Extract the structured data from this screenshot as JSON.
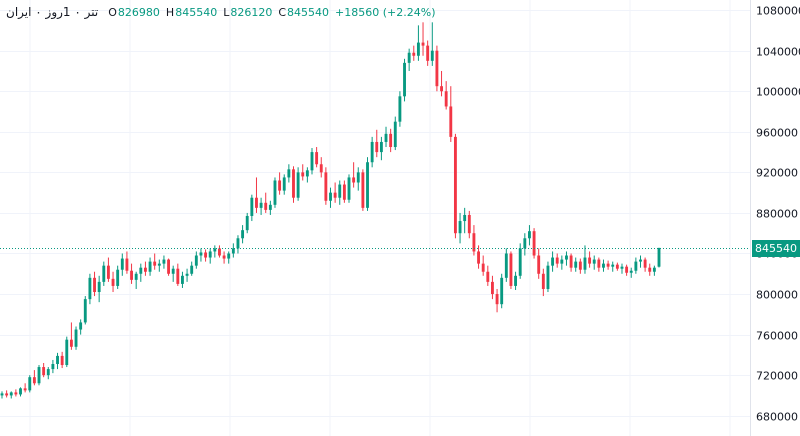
{
  "legend": {
    "symbol": "تتر ۰ 1روز ۰ ایران",
    "open_key": "O",
    "open": "826980",
    "high_key": "H",
    "high": "845540",
    "low_key": "L",
    "low": "826120",
    "close_key": "C",
    "close": "845540",
    "change": "+18560 (+2.24%)"
  },
  "colors": {
    "up": "#089981",
    "down": "#f23645",
    "grid": "#f0f3fa",
    "text": "#131722"
  },
  "chart_data": {
    "type": "candlestick",
    "title": "تتر ۰ 1روز ۰ ایران",
    "ylabel": "",
    "ylim": [
      660000,
      1090000
    ],
    "y_ticks": [
      1080000,
      1040000,
      1000000,
      960000,
      920000,
      880000,
      840000,
      800000,
      760000,
      720000,
      680000
    ],
    "y_tick_labels": [
      "1080000",
      "1040000",
      "1000000",
      "960000",
      "920000",
      "880000",
      "840000",
      "800000",
      "760000",
      "720000",
      "680000"
    ],
    "last_price": 845540,
    "last_price_label": "845540",
    "grid": true,
    "series": [
      {
        "o": 700000,
        "h": 704000,
        "l": 697000,
        "c": 702000
      },
      {
        "o": 702000,
        "h": 705000,
        "l": 698000,
        "c": 700000
      },
      {
        "o": 700000,
        "h": 704000,
        "l": 697000,
        "c": 703000
      },
      {
        "o": 703000,
        "h": 706000,
        "l": 699000,
        "c": 701000
      },
      {
        "o": 701000,
        "h": 708000,
        "l": 699000,
        "c": 707000
      },
      {
        "o": 707000,
        "h": 712000,
        "l": 703000,
        "c": 705000
      },
      {
        "o": 705000,
        "h": 720000,
        "l": 703000,
        "c": 718000
      },
      {
        "o": 718000,
        "h": 725000,
        "l": 710000,
        "c": 712000
      },
      {
        "o": 712000,
        "h": 730000,
        "l": 710000,
        "c": 728000
      },
      {
        "o": 728000,
        "h": 732000,
        "l": 718000,
        "c": 720000
      },
      {
        "o": 720000,
        "h": 728000,
        "l": 716000,
        "c": 726000
      },
      {
        "o": 726000,
        "h": 735000,
        "l": 722000,
        "c": 731000
      },
      {
        "o": 731000,
        "h": 742000,
        "l": 726000,
        "c": 739000
      },
      {
        "o": 739000,
        "h": 743000,
        "l": 727000,
        "c": 730000
      },
      {
        "o": 730000,
        "h": 758000,
        "l": 728000,
        "c": 755000
      },
      {
        "o": 755000,
        "h": 772000,
        "l": 745000,
        "c": 748000
      },
      {
        "o": 748000,
        "h": 768000,
        "l": 745000,
        "c": 765000
      },
      {
        "o": 765000,
        "h": 775000,
        "l": 760000,
        "c": 772000
      },
      {
        "o": 772000,
        "h": 798000,
        "l": 770000,
        "c": 795000
      },
      {
        "o": 795000,
        "h": 820000,
        "l": 790000,
        "c": 816000
      },
      {
        "o": 816000,
        "h": 822000,
        "l": 798000,
        "c": 802000
      },
      {
        "o": 802000,
        "h": 818000,
        "l": 792000,
        "c": 812000
      },
      {
        "o": 812000,
        "h": 832000,
        "l": 808000,
        "c": 828000
      },
      {
        "o": 828000,
        "h": 836000,
        "l": 812000,
        "c": 815000
      },
      {
        "o": 815000,
        "h": 822000,
        "l": 802000,
        "c": 808000
      },
      {
        "o": 808000,
        "h": 828000,
        "l": 805000,
        "c": 824000
      },
      {
        "o": 824000,
        "h": 840000,
        "l": 818000,
        "c": 835000
      },
      {
        "o": 835000,
        "h": 842000,
        "l": 820000,
        "c": 823000
      },
      {
        "o": 823000,
        "h": 830000,
        "l": 810000,
        "c": 814000
      },
      {
        "o": 814000,
        "h": 822000,
        "l": 805000,
        "c": 820000
      },
      {
        "o": 820000,
        "h": 830000,
        "l": 812000,
        "c": 826000
      },
      {
        "o": 826000,
        "h": 832000,
        "l": 818000,
        "c": 822000
      },
      {
        "o": 822000,
        "h": 836000,
        "l": 818000,
        "c": 832000
      },
      {
        "o": 832000,
        "h": 840000,
        "l": 824000,
        "c": 828000
      },
      {
        "o": 828000,
        "h": 834000,
        "l": 822000,
        "c": 830000
      },
      {
        "o": 830000,
        "h": 838000,
        "l": 825000,
        "c": 834000
      },
      {
        "o": 834000,
        "h": 835000,
        "l": 818000,
        "c": 820000
      },
      {
        "o": 820000,
        "h": 828000,
        "l": 812000,
        "c": 825000
      },
      {
        "o": 825000,
        "h": 830000,
        "l": 808000,
        "c": 810000
      },
      {
        "o": 810000,
        "h": 822000,
        "l": 806000,
        "c": 818000
      },
      {
        "o": 818000,
        "h": 825000,
        "l": 812000,
        "c": 820000
      },
      {
        "o": 820000,
        "h": 832000,
        "l": 818000,
        "c": 828000
      },
      {
        "o": 828000,
        "h": 842000,
        "l": 825000,
        "c": 838000
      },
      {
        "o": 838000,
        "h": 845000,
        "l": 832000,
        "c": 841000
      },
      {
        "o": 841000,
        "h": 844000,
        "l": 832000,
        "c": 836000
      },
      {
        "o": 836000,
        "h": 845000,
        "l": 830000,
        "c": 842000
      },
      {
        "o": 842000,
        "h": 848000,
        "l": 836000,
        "c": 845000
      },
      {
        "o": 845000,
        "h": 848000,
        "l": 836000,
        "c": 838000
      },
      {
        "o": 838000,
        "h": 842000,
        "l": 830000,
        "c": 835000
      },
      {
        "o": 835000,
        "h": 842000,
        "l": 830000,
        "c": 840000
      },
      {
        "o": 840000,
        "h": 850000,
        "l": 836000,
        "c": 845000
      },
      {
        "o": 845000,
        "h": 858000,
        "l": 840000,
        "c": 855000
      },
      {
        "o": 855000,
        "h": 868000,
        "l": 850000,
        "c": 863000
      },
      {
        "o": 863000,
        "h": 880000,
        "l": 860000,
        "c": 877000
      },
      {
        "o": 877000,
        "h": 898000,
        "l": 872000,
        "c": 895000
      },
      {
        "o": 895000,
        "h": 915000,
        "l": 880000,
        "c": 885000
      },
      {
        "o": 885000,
        "h": 895000,
        "l": 878000,
        "c": 890000
      },
      {
        "o": 890000,
        "h": 900000,
        "l": 880000,
        "c": 883000
      },
      {
        "o": 883000,
        "h": 892000,
        "l": 878000,
        "c": 888000
      },
      {
        "o": 888000,
        "h": 915000,
        "l": 885000,
        "c": 912000
      },
      {
        "o": 912000,
        "h": 920000,
        "l": 898000,
        "c": 902000
      },
      {
        "o": 902000,
        "h": 918000,
        "l": 898000,
        "c": 915000
      },
      {
        "o": 915000,
        "h": 928000,
        "l": 910000,
        "c": 923000
      },
      {
        "o": 923000,
        "h": 926000,
        "l": 890000,
        "c": 895000
      },
      {
        "o": 895000,
        "h": 925000,
        "l": 892000,
        "c": 920000
      },
      {
        "o": 920000,
        "h": 928000,
        "l": 912000,
        "c": 916000
      },
      {
        "o": 916000,
        "h": 925000,
        "l": 910000,
        "c": 922000
      },
      {
        "o": 922000,
        "h": 944000,
        "l": 918000,
        "c": 940000
      },
      {
        "o": 940000,
        "h": 945000,
        "l": 925000,
        "c": 928000
      },
      {
        "o": 928000,
        "h": 935000,
        "l": 915000,
        "c": 920000
      },
      {
        "o": 920000,
        "h": 925000,
        "l": 888000,
        "c": 892000
      },
      {
        "o": 892000,
        "h": 905000,
        "l": 885000,
        "c": 900000
      },
      {
        "o": 900000,
        "h": 910000,
        "l": 890000,
        "c": 895000
      },
      {
        "o": 895000,
        "h": 912000,
        "l": 888000,
        "c": 908000
      },
      {
        "o": 908000,
        "h": 912000,
        "l": 890000,
        "c": 893000
      },
      {
        "o": 893000,
        "h": 918000,
        "l": 890000,
        "c": 915000
      },
      {
        "o": 915000,
        "h": 930000,
        "l": 905000,
        "c": 910000
      },
      {
        "o": 910000,
        "h": 925000,
        "l": 902000,
        "c": 920000
      },
      {
        "o": 920000,
        "h": 923000,
        "l": 882000,
        "c": 885000
      },
      {
        "o": 885000,
        "h": 935000,
        "l": 882000,
        "c": 930000
      },
      {
        "o": 930000,
        "h": 955000,
        "l": 925000,
        "c": 950000
      },
      {
        "o": 950000,
        "h": 962000,
        "l": 935000,
        "c": 940000
      },
      {
        "o": 940000,
        "h": 955000,
        "l": 932000,
        "c": 950000
      },
      {
        "o": 950000,
        "h": 965000,
        "l": 945000,
        "c": 958000
      },
      {
        "o": 958000,
        "h": 963000,
        "l": 940000,
        "c": 945000
      },
      {
        "o": 945000,
        "h": 975000,
        "l": 942000,
        "c": 970000
      },
      {
        "o": 970000,
        "h": 1000000,
        "l": 965000,
        "c": 995000
      },
      {
        "o": 995000,
        "h": 1032000,
        "l": 990000,
        "c": 1028000
      },
      {
        "o": 1028000,
        "h": 1042000,
        "l": 1020000,
        "c": 1038000
      },
      {
        "o": 1038000,
        "h": 1045000,
        "l": 1030000,
        "c": 1035000
      },
      {
        "o": 1035000,
        "h": 1065000,
        "l": 1030000,
        "c": 1048000
      },
      {
        "o": 1048000,
        "h": 1068000,
        "l": 1035000,
        "c": 1045000
      },
      {
        "o": 1045000,
        "h": 1050000,
        "l": 1025000,
        "c": 1030000
      },
      {
        "o": 1030000,
        "h": 1068000,
        "l": 1025000,
        "c": 1040000
      },
      {
        "o": 1040000,
        "h": 1045000,
        "l": 1000000,
        "c": 1005000
      },
      {
        "o": 1005000,
        "h": 1020000,
        "l": 995000,
        "c": 1000000
      },
      {
        "o": 1000000,
        "h": 1010000,
        "l": 982000,
        "c": 985000
      },
      {
        "o": 985000,
        "h": 1005000,
        "l": 950000,
        "c": 955000
      },
      {
        "o": 955000,
        "h": 958000,
        "l": 855000,
        "c": 860000
      },
      {
        "o": 860000,
        "h": 880000,
        "l": 850000,
        "c": 872000
      },
      {
        "o": 872000,
        "h": 885000,
        "l": 860000,
        "c": 878000
      },
      {
        "o": 878000,
        "h": 882000,
        "l": 855000,
        "c": 860000
      },
      {
        "o": 860000,
        "h": 868000,
        "l": 838000,
        "c": 842000
      },
      {
        "o": 842000,
        "h": 848000,
        "l": 825000,
        "c": 830000
      },
      {
        "o": 830000,
        "h": 838000,
        "l": 818000,
        "c": 822000
      },
      {
        "o": 822000,
        "h": 828000,
        "l": 808000,
        "c": 812000
      },
      {
        "o": 812000,
        "h": 818000,
        "l": 795000,
        "c": 800000
      },
      {
        "o": 800000,
        "h": 805000,
        "l": 782000,
        "c": 790000
      },
      {
        "o": 790000,
        "h": 820000,
        "l": 786000,
        "c": 816000
      },
      {
        "o": 816000,
        "h": 845000,
        "l": 812000,
        "c": 840000
      },
      {
        "o": 840000,
        "h": 842000,
        "l": 805000,
        "c": 808000
      },
      {
        "o": 808000,
        "h": 822000,
        "l": 804000,
        "c": 818000
      },
      {
        "o": 818000,
        "h": 850000,
        "l": 815000,
        "c": 845000
      },
      {
        "o": 845000,
        "h": 860000,
        "l": 838000,
        "c": 855000
      },
      {
        "o": 855000,
        "h": 868000,
        "l": 848000,
        "c": 862000
      },
      {
        "o": 862000,
        "h": 865000,
        "l": 835000,
        "c": 838000
      },
      {
        "o": 838000,
        "h": 845000,
        "l": 815000,
        "c": 820000
      },
      {
        "o": 820000,
        "h": 825000,
        "l": 798000,
        "c": 805000
      },
      {
        "o": 805000,
        "h": 832000,
        "l": 802000,
        "c": 828000
      },
      {
        "o": 828000,
        "h": 842000,
        "l": 822000,
        "c": 836000
      },
      {
        "o": 836000,
        "h": 840000,
        "l": 826000,
        "c": 830000
      },
      {
        "o": 830000,
        "h": 838000,
        "l": 824000,
        "c": 834000
      },
      {
        "o": 834000,
        "h": 842000,
        "l": 828000,
        "c": 838000
      },
      {
        "o": 838000,
        "h": 840000,
        "l": 822000,
        "c": 826000
      },
      {
        "o": 826000,
        "h": 836000,
        "l": 822000,
        "c": 832000
      },
      {
        "o": 832000,
        "h": 835000,
        "l": 820000,
        "c": 824000
      },
      {
        "o": 824000,
        "h": 848000,
        "l": 820000,
        "c": 836000
      },
      {
        "o": 836000,
        "h": 842000,
        "l": 826000,
        "c": 830000
      },
      {
        "o": 830000,
        "h": 838000,
        "l": 824000,
        "c": 834000
      },
      {
        "o": 834000,
        "h": 836000,
        "l": 822000,
        "c": 826000
      },
      {
        "o": 826000,
        "h": 834000,
        "l": 822000,
        "c": 830000
      },
      {
        "o": 830000,
        "h": 833000,
        "l": 824000,
        "c": 827000
      },
      {
        "o": 827000,
        "h": 832000,
        "l": 822000,
        "c": 829000
      },
      {
        "o": 829000,
        "h": 831000,
        "l": 823000,
        "c": 825000
      },
      {
        "o": 825000,
        "h": 830000,
        "l": 820000,
        "c": 827000
      },
      {
        "o": 827000,
        "h": 829000,
        "l": 818000,
        "c": 821000
      },
      {
        "o": 821000,
        "h": 826000,
        "l": 816000,
        "c": 823000
      },
      {
        "o": 823000,
        "h": 836000,
        "l": 820000,
        "c": 832000
      },
      {
        "o": 832000,
        "h": 838000,
        "l": 826000,
        "c": 834000
      },
      {
        "o": 834000,
        "h": 836000,
        "l": 822000,
        "c": 826000
      },
      {
        "o": 826000,
        "h": 830000,
        "l": 818000,
        "c": 822000
      },
      {
        "o": 822000,
        "h": 828000,
        "l": 818000,
        "c": 826000
      },
      {
        "o": 826980,
        "h": 845540,
        "l": 826120,
        "c": 845540
      }
    ]
  }
}
